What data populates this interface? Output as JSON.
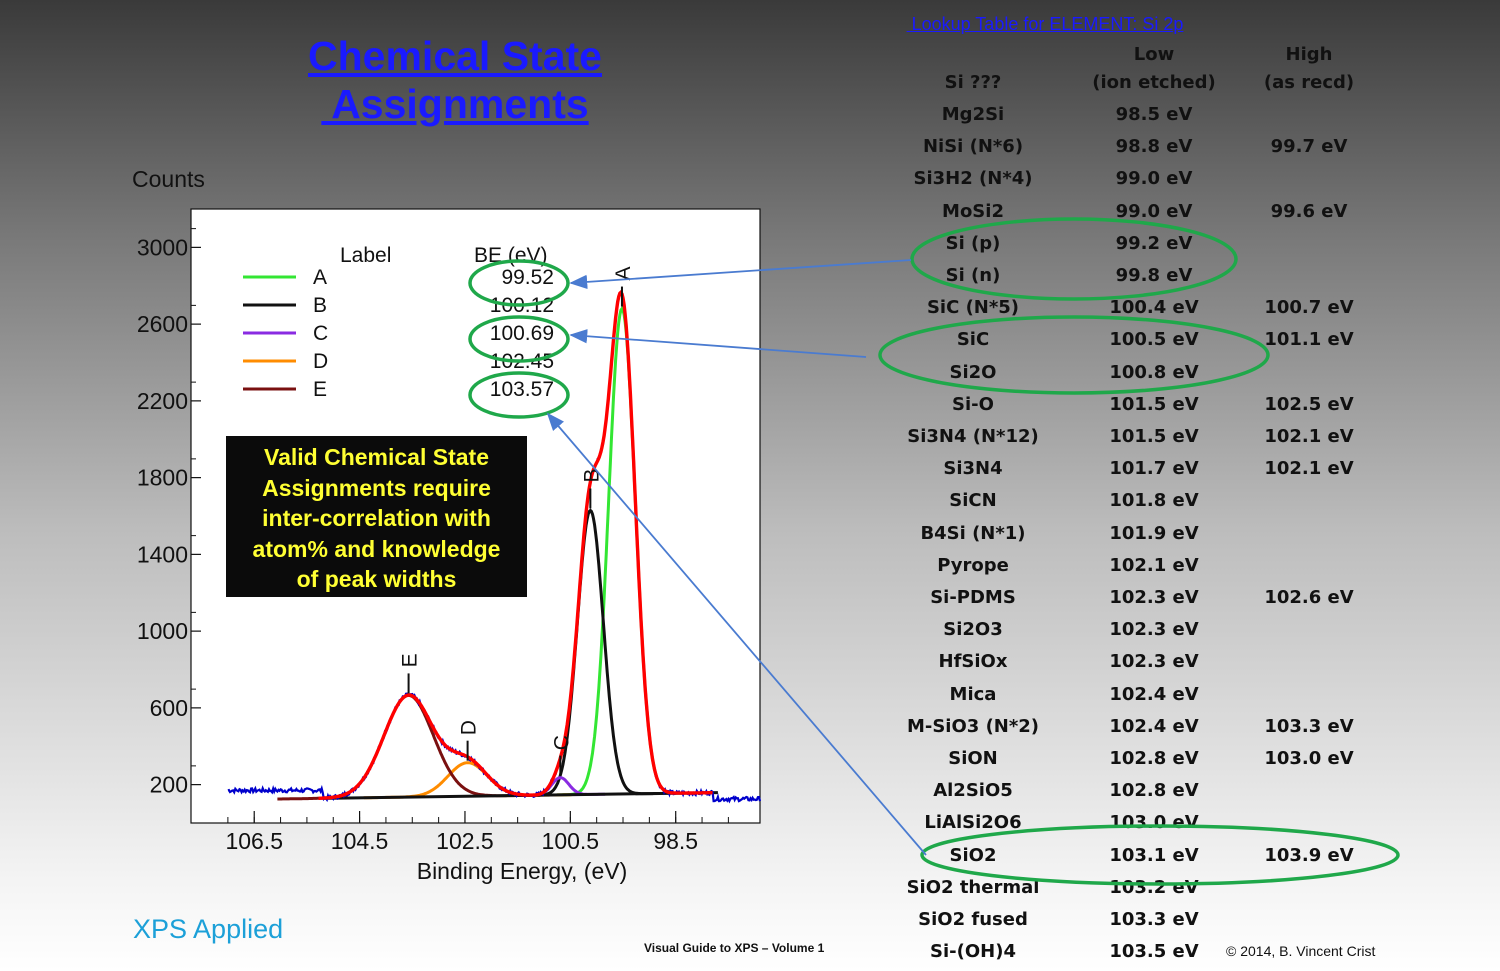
{
  "slide": {
    "title_line1": "Chemical State",
    "title_line2": " Assignments",
    "brand": "XPS Applied",
    "footer_center": "Visual Guide to XPS – Volume 1",
    "footer_right": "© 2014,  B. Vincent Crist"
  },
  "note": {
    "lines": [
      "Valid Chemical State",
      "Assignments require",
      "inter-correlation with",
      "atom% and knowledge",
      "of peak widths"
    ]
  },
  "chart_data": {
    "type": "line",
    "ylabel": "Counts",
    "xlabel": "Binding Energy, (eV)",
    "xlim": [
      107.7,
      96.9
    ],
    "ylim": [
      0,
      3200
    ],
    "x_ticks": [
      "106.5",
      "104.5",
      "102.5",
      "100.5",
      "98.5"
    ],
    "y_ticks": [
      "200",
      "600",
      "1000",
      "1400",
      "1800",
      "2200",
      "2600",
      "3000"
    ],
    "legend_header": [
      "Label",
      "BE (eV)"
    ],
    "background": 145,
    "series": [
      {
        "name": "A",
        "color": "#33e633",
        "x": 99.52,
        "height": 2530,
        "width": 0.42
      },
      {
        "name": "B",
        "color": "#111111",
        "x": 100.12,
        "height": 1480,
        "width": 0.41
      },
      {
        "name": "C",
        "color": "#8a2be2",
        "x": 100.69,
        "height": 90,
        "width": 0.27
      },
      {
        "name": "D",
        "color": "#ff8c00",
        "x": 102.45,
        "height": 175,
        "width": 0.62
      },
      {
        "name": "E",
        "color": "#7a1010",
        "x": 103.57,
        "height": 530,
        "width": 0.78
      }
    ],
    "legend_values": [
      "99.52",
      "100.12",
      "100.69",
      "102.45",
      "103.57"
    ],
    "envelope_color": "#ff0000",
    "data_color": "#0000cc",
    "highlight_color": "#1fa84a"
  },
  "lookup": {
    "title": " Lookup Table for ELEMENT: Si 2p",
    "header_low_1": "Low",
    "header_low_2": "(ion etched)",
    "header_high_1": "High",
    "header_high_2": "(as recd)",
    "header_name": "Si ???",
    "rows": [
      {
        "name": "Mg2Si",
        "low": "98.5 eV",
        "high": ""
      },
      {
        "name": "NiSi (N*6)",
        "low": "98.8 eV",
        "high": "99.7 eV"
      },
      {
        "name": "Si3H2 (N*4)",
        "low": "99.0 eV",
        "high": ""
      },
      {
        "name": "MoSi2",
        "low": "99.0 eV",
        "high": "99.6 eV"
      },
      {
        "name": "Si (p)",
        "low": "99.2 eV",
        "high": ""
      },
      {
        "name": "Si (n)",
        "low": "99.8 eV",
        "high": ""
      },
      {
        "name": "SiC (N*5)",
        "low": "100.4 eV",
        "high": "100.7 eV"
      },
      {
        "name": "SiC",
        "low": "100.5 eV",
        "high": "101.1 eV"
      },
      {
        "name": "Si2O",
        "low": "100.8 eV",
        "high": ""
      },
      {
        "name": "Si-O",
        "low": "101.5 eV",
        "high": "102.5 eV"
      },
      {
        "name": "Si3N4 (N*12)",
        "low": "101.5 eV",
        "high": "102.1 eV"
      },
      {
        "name": "Si3N4",
        "low": "101.7 eV",
        "high": "102.1 eV"
      },
      {
        "name": "SiCN",
        "low": "101.8 eV",
        "high": ""
      },
      {
        "name": "B4Si  (N*1)",
        "low": "101.9 eV",
        "high": ""
      },
      {
        "name": "Pyrope",
        "low": "102.1 eV",
        "high": ""
      },
      {
        "name": "Si-PDMS",
        "low": "102.3 eV",
        "high": "102.6 eV"
      },
      {
        "name": "Si2O3",
        "low": "102.3 eV",
        "high": ""
      },
      {
        "name": "HfSiOx",
        "low": "102.3 eV",
        "high": ""
      },
      {
        "name": "Mica",
        "low": "102.4 eV",
        "high": ""
      },
      {
        "name": "M-SiO3 (N*2)",
        "low": "102.4 eV",
        "high": "103.3 eV"
      },
      {
        "name": "SiON",
        "low": "102.8 eV",
        "high": "103.0 eV"
      },
      {
        "name": "Al2SiO5",
        "low": "102.8 eV",
        "high": ""
      },
      {
        "name": "LiAlSi2O6",
        "low": "103.0 eV",
        "high": ""
      },
      {
        "name": "SiO2",
        "low": "103.1 eV",
        "high": "103.9 eV"
      },
      {
        "name": "SiO2 thermal",
        "low": "103.2 eV",
        "high": ""
      },
      {
        "name": "SiO2 fused",
        "low": "103.3 eV",
        "high": ""
      },
      {
        "name": "Si-(OH)4",
        "low": "103.5 eV",
        "high": ""
      }
    ]
  }
}
